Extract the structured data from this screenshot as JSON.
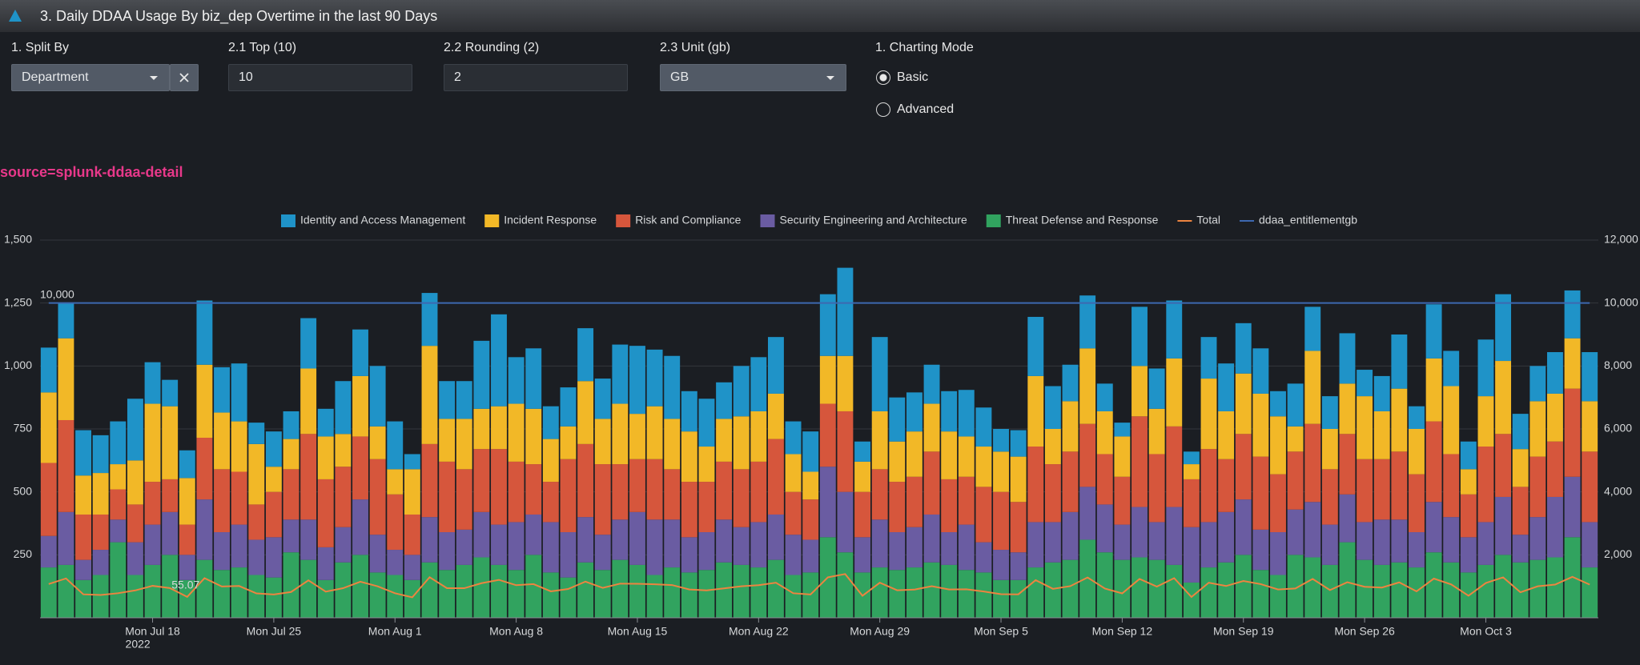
{
  "header": {
    "title": "3. Daily DDAA Usage By biz_dep Overtime in the last 90 Days"
  },
  "inputs": [
    {
      "label": "1. Split By",
      "value": "Department"
    },
    {
      "label": "2.1 Top (10)",
      "value": "10"
    },
    {
      "label": "2.2 Rounding (2)",
      "value": "2"
    },
    {
      "label": "2.3 Unit (gb)",
      "value": "GB"
    },
    {
      "label": "1. Charting Mode",
      "options": [
        "Basic",
        "Advanced"
      ]
    }
  ],
  "search_label": "source=splunk-ddaa-detail",
  "chart_data": {
    "type": "bar",
    "stacked": true,
    "grid": true,
    "legend": "top",
    "categories": [
      null,
      null,
      null,
      null,
      null,
      null,
      "Mon Jul 18",
      null,
      null,
      null,
      null,
      null,
      null,
      "Mon Jul 25",
      null,
      null,
      null,
      null,
      null,
      null,
      "Mon Aug 1",
      null,
      null,
      null,
      null,
      null,
      null,
      "Mon Aug 8",
      null,
      null,
      null,
      null,
      null,
      null,
      "Mon Aug 15",
      null,
      null,
      null,
      null,
      null,
      null,
      "Mon Aug 22",
      null,
      null,
      null,
      null,
      null,
      null,
      "Mon Aug 29",
      null,
      null,
      null,
      null,
      null,
      null,
      "Mon Sep 5",
      null,
      null,
      null,
      null,
      null,
      null,
      "Mon Sep 12",
      null,
      null,
      null,
      null,
      null,
      null,
      "Mon Sep 19",
      null,
      null,
      null,
      null,
      null,
      null,
      "Mon Sep 26",
      null,
      null,
      null,
      null,
      null,
      null,
      "Mon Oct 3",
      null,
      null,
      null,
      null,
      null,
      null
    ],
    "x_axis_year": "2022",
    "ylim": [
      0,
      1500
    ],
    "yticks": [
      250,
      500,
      750,
      {
        "value": 1000,
        "label": "1,000"
      },
      {
        "value": 1250,
        "label": "1,250"
      },
      {
        "value": 1500,
        "label": "1,500"
      }
    ],
    "y2lim": [
      0,
      12000
    ],
    "y2ticks": [
      {
        "value": 2000,
        "label": "2,000"
      },
      {
        "value": 4000,
        "label": "4,000"
      },
      {
        "value": 6000,
        "label": "6,000"
      },
      {
        "value": 8000,
        "label": "8,000"
      },
      {
        "value": 10000,
        "label": "10,000"
      },
      {
        "value": 12000,
        "label": "12,000"
      }
    ],
    "annotations": [
      {
        "text": "10,000"
      },
      {
        "text": "55.07"
      }
    ],
    "series": [
      {
        "name": "Identity and Access Management",
        "color": "#1f93c8",
        "values": [
          178,
          140,
          180,
          150,
          170,
          245,
          165,
          105,
          110,
          255,
          180,
          230,
          85,
          140,
          110,
          200,
          110,
          210,
          185,
          240,
          190,
          60,
          210,
          150,
          150,
          270,
          365,
          185,
          240,
          130,
          155,
          210,
          160,
          235,
          270,
          225,
          250,
          160,
          190,
          145,
          200,
          215,
          225,
          130,
          160,
          245,
          350,
          80,
          295,
          175,
          155,
          155,
          160,
          185,
          155,
          90,
          105,
          235,
          170,
          145,
          210,
          110,
          55,
          235,
          160,
          230,
          50,
          165,
          190,
          200,
          180,
          100,
          170,
          175,
          130,
          200,
          105,
          140,
          215,
          90,
          215,
          140,
          110,
          225,
          265,
          140,
          140,
          165,
          190,
          195
        ]
      },
      {
        "name": "Incident Response",
        "color": "#f2b827",
        "values": [
          280,
          325,
          155,
          165,
          100,
          175,
          310,
          290,
          185,
          290,
          225,
          200,
          240,
          100,
          120,
          260,
          170,
          130,
          240,
          130,
          100,
          180,
          390,
          170,
          200,
          160,
          170,
          230,
          220,
          170,
          130,
          250,
          180,
          240,
          180,
          210,
          200,
          200,
          140,
          170,
          210,
          200,
          180,
          150,
          110,
          190,
          220,
          120,
          230,
          160,
          180,
          190,
          190,
          160,
          160,
          160,
          180,
          280,
          140,
          200,
          300,
          170,
          160,
          200,
          180,
          270,
          60,
          280,
          190,
          240,
          250,
          230,
          100,
          290,
          160,
          200,
          250,
          190,
          250,
          180,
          250,
          270,
          100,
          200,
          290,
          150,
          220,
          190,
          200,
          200
        ]
      },
      {
        "name": "Risk and Compliance",
        "color": "#d6563c",
        "values": [
          290,
          365,
          180,
          140,
          120,
          150,
          170,
          130,
          120,
          245,
          250,
          210,
          140,
          180,
          200,
          340,
          270,
          240,
          250,
          300,
          220,
          160,
          290,
          280,
          240,
          250,
          300,
          240,
          200,
          160,
          290,
          290,
          280,
          220,
          210,
          240,
          200,
          220,
          200,
          230,
          230,
          240,
          300,
          170,
          160,
          250,
          320,
          180,
          200,
          200,
          200,
          250,
          210,
          190,
          220,
          230,
          200,
          300,
          230,
          240,
          250,
          200,
          190,
          360,
          270,
          320,
          190,
          290,
          210,
          260,
          290,
          230,
          230,
          310,
          220,
          240,
          250,
          240,
          270,
          230,
          320,
          250,
          170,
          300,
          250,
          190,
          240,
          220,
          350,
          280
        ]
      },
      {
        "name": "Security Engineering and Architecture",
        "color": "#6a5ca2",
        "values": [
          125,
          210,
          80,
          100,
          90,
          130,
          160,
          170,
          100,
          240,
          150,
          170,
          140,
          160,
          130,
          160,
          130,
          140,
          220,
          150,
          100,
          100,
          180,
          150,
          140,
          180,
          160,
          190,
          160,
          200,
          180,
          180,
          140,
          160,
          210,
          220,
          190,
          140,
          150,
          170,
          150,
          180,
          180,
          160,
          130,
          280,
          240,
          140,
          190,
          150,
          160,
          190,
          130,
          180,
          120,
          120,
          110,
          180,
          160,
          190,
          210,
          190,
          140,
          200,
          150,
          230,
          220,
          180,
          200,
          220,
          160,
          170,
          180,
          220,
          160,
          190,
          150,
          180,
          170,
          140,
          200,
          180,
          140,
          170,
          230,
          110,
          170,
          240,
          240,
          180
        ]
      },
      {
        "name": "Threat Defense and Response",
        "color": "#31a35f",
        "values": [
          200,
          210,
          150,
          170,
          300,
          170,
          210,
          250,
          150,
          230,
          190,
          200,
          170,
          160,
          260,
          230,
          150,
          220,
          250,
          180,
          170,
          150,
          220,
          190,
          210,
          240,
          210,
          190,
          250,
          180,
          160,
          220,
          190,
          230,
          210,
          170,
          200,
          180,
          190,
          220,
          210,
          200,
          230,
          170,
          180,
          320,
          260,
          180,
          200,
          190,
          200,
          220,
          210,
          190,
          180,
          150,
          150,
          200,
          220,
          230,
          310,
          260,
          230,
          240,
          230,
          210,
          140,
          200,
          220,
          250,
          190,
          170,
          250,
          240,
          210,
          300,
          230,
          210,
          220,
          200,
          260,
          220,
          180,
          210,
          250,
          220,
          230,
          240,
          320,
          200
        ]
      },
      {
        "name": "Total",
        "color": "#ed8440",
        "type": "line",
        "axis": "y2",
        "values": [
          1073,
          1250,
          745,
          725,
          780,
          870,
          1015,
          945,
          665,
          1260,
          995,
          1010,
          775,
          740,
          820,
          1190,
          830,
          940,
          1145,
          1000,
          780,
          650,
          1290,
          940,
          940,
          1100,
          1205,
          1035,
          1070,
          840,
          915,
          1150,
          950,
          1085,
          1080,
          1065,
          1040,
          900,
          870,
          935,
          1000,
          1035,
          1115,
          780,
          740,
          1285,
          1390,
          700,
          1115,
          875,
          895,
          1005,
          900,
          905,
          835,
          750,
          745,
          1195,
          920,
          1005,
          1280,
          930,
          775,
          1235,
          990,
          1260,
          660,
          1115,
          1010,
          1170,
          1070,
          900,
          930,
          1235,
          880,
          1130,
          985,
          960,
          1125,
          840,
          1245,
          1060,
          700,
          1105,
          1285,
          810,
          1000,
          1055,
          1300,
          1055
        ]
      },
      {
        "name": "ddaa_entitlementgb",
        "color": "#3d68b0",
        "type": "line",
        "axis": "y2",
        "values": [
          10000,
          10000,
          10000,
          10000,
          10000,
          10000,
          10000,
          10000,
          10000,
          10000,
          10000,
          10000,
          10000,
          10000,
          10000,
          10000,
          10000,
          10000,
          10000,
          10000,
          10000,
          10000,
          10000,
          10000,
          10000,
          10000,
          10000,
          10000,
          10000,
          10000,
          10000,
          10000,
          10000,
          10000,
          10000,
          10000,
          10000,
          10000,
          10000,
          10000,
          10000,
          10000,
          10000,
          10000,
          10000,
          10000,
          10000,
          10000,
          10000,
          10000,
          10000,
          10000,
          10000,
          10000,
          10000,
          10000,
          10000,
          10000,
          10000,
          10000,
          10000,
          10000,
          10000,
          10000,
          10000,
          10000,
          10000,
          10000,
          10000,
          10000,
          10000,
          10000,
          10000,
          10000,
          10000,
          10000,
          10000,
          10000,
          10000,
          10000,
          10000,
          10000,
          10000,
          10000,
          10000,
          10000,
          10000,
          10000,
          10000,
          10000
        ]
      }
    ]
  }
}
